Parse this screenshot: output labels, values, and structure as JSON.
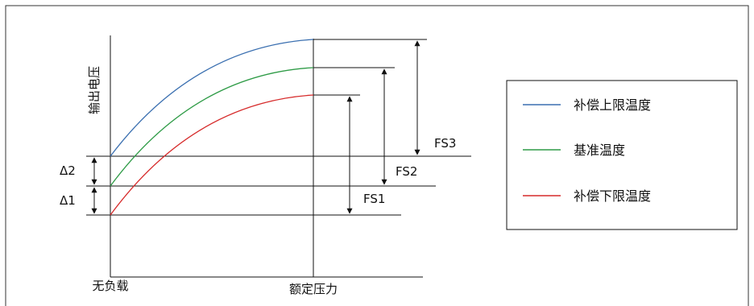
{
  "colors": {
    "upper": "#3a6fb0",
    "base": "#2e9b46",
    "lower": "#d62a2a",
    "ink": "#111111",
    "frame": "#333333"
  },
  "axes": {
    "y_label": "输出电压",
    "x_label_start": "无负载",
    "x_label_rated": "额定压力"
  },
  "deltas": {
    "d2": "Δ2",
    "d1": "Δ1"
  },
  "spans": {
    "fs3": "FS3",
    "fs2": "FS2",
    "fs1": "FS1"
  },
  "legend": {
    "items": [
      {
        "label": "补偿上限温度",
        "color_key": "upper"
      },
      {
        "label": "基准温度",
        "color_key": "base"
      },
      {
        "label": "补偿下限温度",
        "color_key": "lower"
      }
    ]
  }
}
